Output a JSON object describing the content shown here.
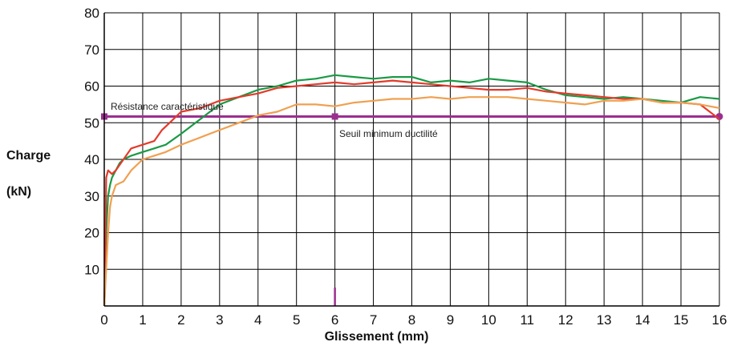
{
  "chart_data": {
    "type": "line",
    "ylabel_line1": "Charge",
    "ylabel_line2": "(kN)",
    "xlabel": "Glissement  (mm)",
    "xlim": [
      0,
      16
    ],
    "ylim": [
      0,
      80
    ],
    "x_ticks": [
      0,
      1,
      2,
      3,
      4,
      5,
      6,
      7,
      8,
      9,
      10,
      11,
      12,
      13,
      14,
      15,
      16
    ],
    "y_ticks": [
      10,
      20,
      30,
      40,
      50,
      60,
      70,
      80
    ],
    "grid": true,
    "annotations": {
      "resistance_label": "Résistance caractéristique",
      "ductility_label": "Seuil minimum ductilité"
    },
    "reference_line": {
      "y": 51.7,
      "x_start": 0,
      "x_end": 16,
      "markers_x": [
        0,
        6,
        16
      ],
      "color": "#9b2f8f"
    },
    "ductility_marker": {
      "x": 6,
      "y_from": 0,
      "y_to": 5,
      "color": "#9b2f8f"
    },
    "series": [
      {
        "color": "#1a9a45",
        "x": [
          0,
          0.02,
          0.05,
          0.1,
          0.15,
          0.2,
          0.3,
          0.4,
          0.5,
          0.7,
          1.0,
          1.3,
          1.6,
          2.0,
          2.5,
          3.0,
          3.5,
          4.0,
          4.5,
          5.0,
          5.5,
          6.0,
          6.5,
          7.0,
          7.5,
          8.0,
          8.5,
          9.0,
          9.5,
          10.0,
          10.5,
          11.0,
          11.5,
          12.0,
          12.5,
          13.0,
          13.5,
          14.0,
          14.5,
          15.0,
          15.5,
          16.0
        ],
        "y": [
          0,
          5,
          20,
          30,
          33,
          35,
          37,
          39,
          40,
          41,
          42,
          43,
          44,
          47,
          51,
          55,
          57,
          59,
          60,
          61.5,
          62,
          63,
          62.5,
          62,
          62.5,
          62.5,
          61,
          61.5,
          61,
          62,
          61.5,
          61,
          59,
          57.5,
          57,
          56.5,
          57,
          56.5,
          56,
          55.5,
          57,
          56.5
        ]
      },
      {
        "color": "#e23b2c",
        "x": [
          0,
          0.03,
          0.05,
          0.1,
          0.2,
          0.3,
          0.5,
          0.7,
          1.0,
          1.3,
          1.5,
          1.7,
          2.0,
          2.5,
          3.0,
          3.5,
          4.0,
          4.5,
          5.0,
          5.5,
          6.0,
          6.5,
          7.0,
          7.5,
          8.0,
          8.5,
          9.0,
          9.5,
          10.0,
          10.5,
          11.0,
          11.5,
          12.0,
          12.5,
          13.0,
          13.5,
          14.0,
          14.5,
          15.0,
          15.5,
          16.0
        ],
        "y": [
          0,
          15,
          35,
          37,
          36,
          37,
          40,
          43,
          44,
          45,
          48,
          50,
          53,
          54,
          56,
          57,
          58,
          59.5,
          60,
          60.5,
          61,
          60.5,
          61,
          61.5,
          61,
          60.5,
          60,
          59.5,
          59,
          59,
          59.5,
          58.5,
          58,
          57.5,
          57,
          56.5,
          56.5,
          55.5,
          55.5,
          55,
          51
        ]
      },
      {
        "color": "#f0a050",
        "x": [
          0,
          0.05,
          0.1,
          0.15,
          0.2,
          0.3,
          0.5,
          0.7,
          1.0,
          1.3,
          1.6,
          2.0,
          2.5,
          3.0,
          3.5,
          4.0,
          4.5,
          5.0,
          5.5,
          6.0,
          6.5,
          7.0,
          7.5,
          8.0,
          8.5,
          9.0,
          9.5,
          10.0,
          10.5,
          11.0,
          11.5,
          12.0,
          12.5,
          13.0,
          13.5,
          14.0,
          14.5,
          15.0,
          15.5,
          16.0
        ],
        "y": [
          0,
          10,
          20,
          27,
          30,
          33,
          34,
          37,
          40,
          41,
          42,
          44,
          46,
          48,
          50,
          52,
          53,
          55,
          55,
          54.5,
          55.5,
          56,
          56.5,
          56.5,
          57,
          56.5,
          57,
          57,
          57,
          56.5,
          56,
          55.5,
          55,
          56,
          56,
          56.5,
          55.5,
          55.5,
          55,
          54
        ]
      }
    ]
  }
}
